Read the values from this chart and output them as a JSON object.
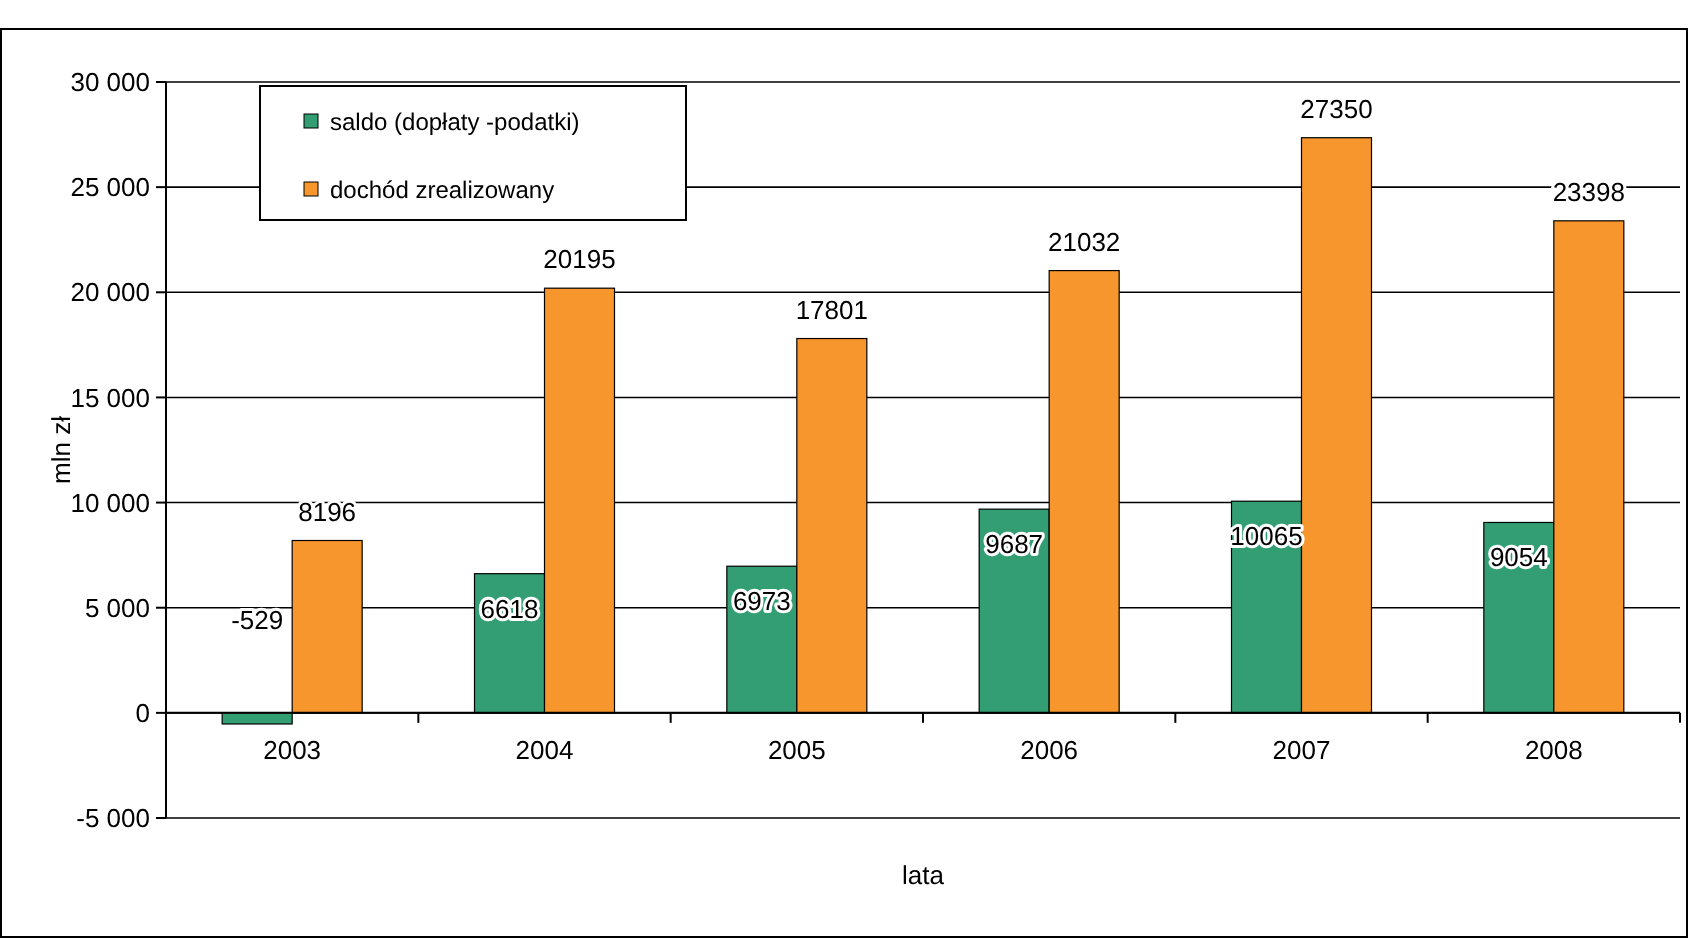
{
  "chart_data": {
    "type": "bar",
    "xlabel": "lata",
    "ylabel": "mln zł",
    "categories": [
      "2003",
      "2004",
      "2005",
      "2006",
      "2007",
      "2008"
    ],
    "series": [
      {
        "name": "saldo (dopłaty -podatki)",
        "color": "#339e73",
        "values": [
          -529,
          6618,
          6973,
          9687,
          10065,
          9054
        ]
      },
      {
        "name": "dochód zrealizowany",
        "color": "#f7962d",
        "values": [
          8196,
          20195,
          17801,
          21032,
          27350,
          23398
        ]
      }
    ],
    "ylim": [
      -5000,
      30000
    ],
    "yticks": [
      {
        "value": -5000,
        "label": "-5 000"
      },
      0,
      {
        "value": 5000,
        "label": "5 000"
      },
      {
        "value": 10000,
        "label": "10 000"
      },
      {
        "value": 15000,
        "label": "15 000"
      },
      {
        "value": 20000,
        "label": "20 000"
      },
      {
        "value": 25000,
        "label": "25 000"
      },
      {
        "value": 30000,
        "label": "30 000"
      }
    ],
    "grid": "y",
    "legend": "top left",
    "data_labels": true
  }
}
